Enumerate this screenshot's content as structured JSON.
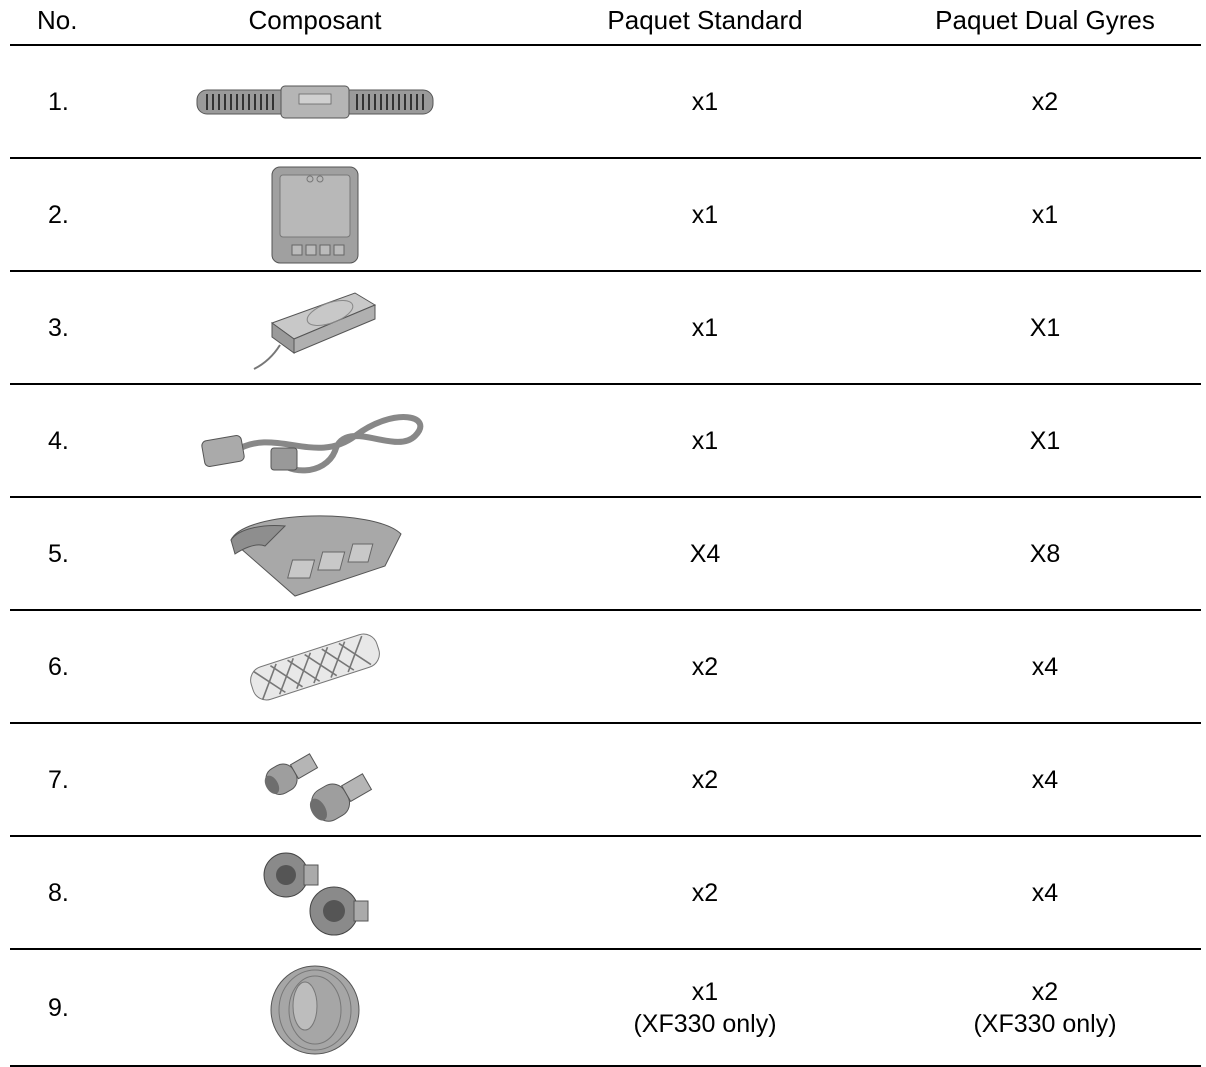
{
  "table": {
    "headers": {
      "no": "No.",
      "component": "Composant",
      "standard": "Paquet Standard",
      "dual": "Paquet Dual Gyres"
    },
    "rows": [
      {
        "no": "1.",
        "icon": "gyre-pump-icon",
        "standard": "x1",
        "dual": "x2"
      },
      {
        "no": "2.",
        "icon": "controller-icon",
        "standard": "x1",
        "dual": "x1"
      },
      {
        "no": "3.",
        "icon": "power-supply-icon",
        "standard": "x1",
        "dual": "X1"
      },
      {
        "no": "4.",
        "icon": "power-cord-icon",
        "standard": "x1",
        "dual": "X1"
      },
      {
        "no": "5.",
        "icon": "mounting-bracket-icon",
        "standard": "X4",
        "dual": "X8"
      },
      {
        "no": "6.",
        "icon": "mesh-guard-icon",
        "standard": "x2",
        "dual": "x4"
      },
      {
        "no": "7.",
        "icon": "rubber-bumper-icon",
        "standard": "x2",
        "dual": "x4"
      },
      {
        "no": "8.",
        "icon": "grommet-icon",
        "standard": "x2",
        "dual": "x4"
      },
      {
        "no": "9.",
        "icon": "end-cap-icon",
        "standard": "x1",
        "standard_note": "(XF330 only)",
        "dual": "x2",
        "dual_note": "(XF330 only)"
      }
    ]
  }
}
